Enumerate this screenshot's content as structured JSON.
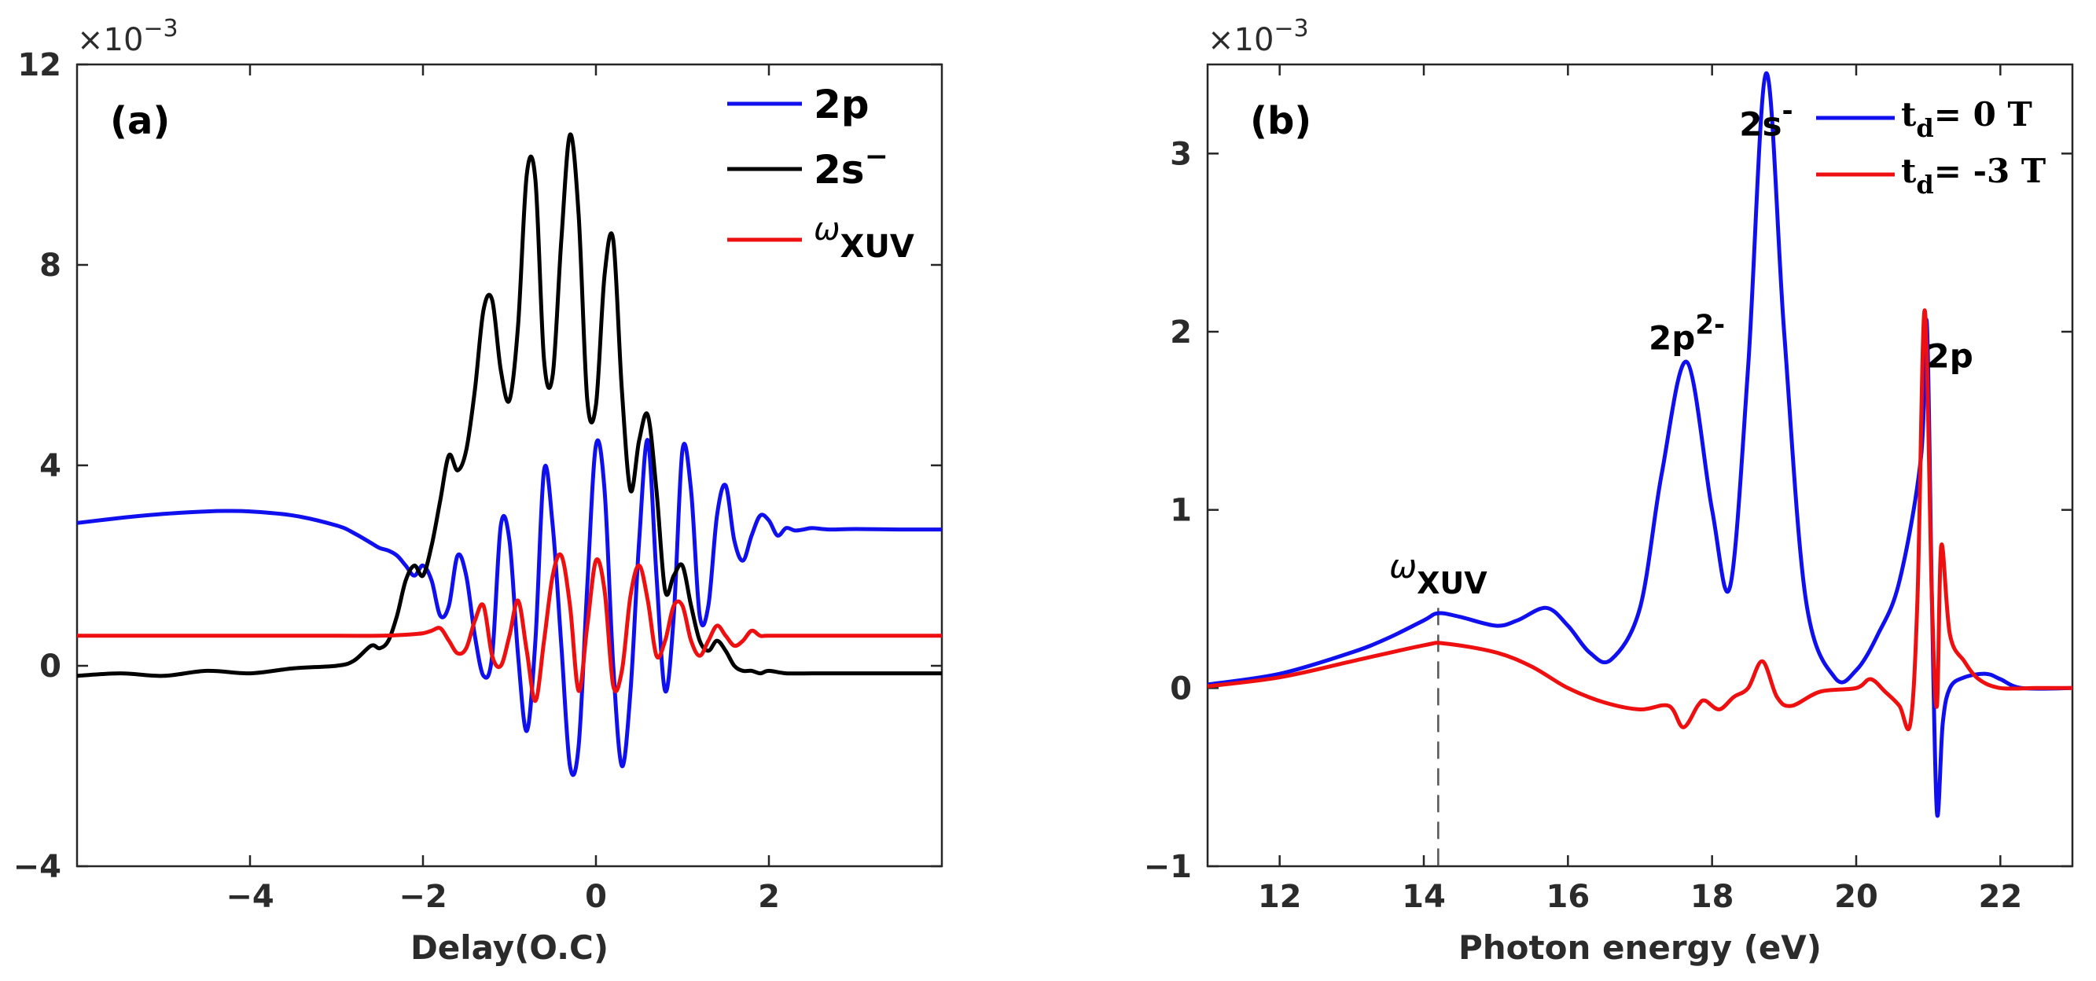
{
  "chart_data": [
    {
      "type": "line",
      "panel_label": "(a)",
      "xlabel": "Delay(O.C)",
      "ylabel": "",
      "exponent_label": "×10",
      "exponent_power": "−3",
      "xlim": [
        -6,
        4
      ],
      "ylim": [
        -4,
        12
      ],
      "xticks": [
        -4,
        -2,
        0,
        2
      ],
      "xtick_labels": [
        "−4",
        "−2",
        "0",
        "2"
      ],
      "yticks": [
        -4,
        0,
        4,
        8,
        12
      ],
      "ytick_labels": [
        "−4",
        "0",
        "4",
        "8",
        "12"
      ],
      "legend_position": "top-right",
      "series": [
        {
          "name": "2p",
          "legend_label": "2p",
          "color": "#1010ee",
          "x": [
            -6,
            -5.5,
            -5,
            -4.5,
            -4.3,
            -4,
            -3.5,
            -3,
            -2.8,
            -2.6,
            -2.5,
            -2.4,
            -2.3,
            -2.2,
            -2.1,
            -2,
            -1.9,
            -1.8,
            -1.7,
            -1.6,
            -1.5,
            -1.4,
            -1.3,
            -1.2,
            -1.1,
            -1.0,
            -0.9,
            -0.8,
            -0.7,
            -0.6,
            -0.5,
            -0.4,
            -0.3,
            -0.2,
            -0.1,
            0,
            0.1,
            0.2,
            0.3,
            0.4,
            0.5,
            0.6,
            0.7,
            0.8,
            0.9,
            1.0,
            1.1,
            1.2,
            1.3,
            1.4,
            1.5,
            1.6,
            1.7,
            1.8,
            1.9,
            2.0,
            2.1,
            2.2,
            2.3,
            2.4,
            2.5,
            2.7,
            3.0,
            3.5,
            4.0
          ],
          "y": [
            2.85,
            2.95,
            3.03,
            3.08,
            3.09,
            3.08,
            3.0,
            2.8,
            2.65,
            2.45,
            2.35,
            2.3,
            2.2,
            2.0,
            1.8,
            2.0,
            1.7,
            1.0,
            1.2,
            2.2,
            1.8,
            0.6,
            -0.2,
            0.2,
            2.8,
            2.5,
            0.2,
            -1.3,
            0.5,
            3.9,
            2.8,
            0.4,
            -2.0,
            -1.6,
            1.6,
            4.4,
            3.5,
            0.0,
            -2.0,
            -0.5,
            2.5,
            4.5,
            1.8,
            -0.5,
            1.0,
            4.3,
            3.5,
            1.0,
            1.2,
            3.0,
            3.6,
            2.5,
            2.1,
            2.6,
            3.0,
            2.9,
            2.6,
            2.75,
            2.7,
            2.72,
            2.75,
            2.72,
            2.73,
            2.72,
            2.72
          ]
        },
        {
          "name": "2s-",
          "legend_label": "2s",
          "legend_sup": "−",
          "color": "#000000",
          "x": [
            -6,
            -5.5,
            -5,
            -4.5,
            -4,
            -3.5,
            -3,
            -2.8,
            -2.6,
            -2.5,
            -2.4,
            -2.3,
            -2.2,
            -2.1,
            -2,
            -1.9,
            -1.8,
            -1.7,
            -1.6,
            -1.5,
            -1.4,
            -1.3,
            -1.2,
            -1.1,
            -1.0,
            -0.9,
            -0.8,
            -0.7,
            -0.6,
            -0.5,
            -0.4,
            -0.3,
            -0.2,
            -0.1,
            0,
            0.1,
            0.2,
            0.3,
            0.4,
            0.5,
            0.6,
            0.7,
            0.8,
            0.9,
            1.0,
            1.1,
            1.2,
            1.3,
            1.4,
            1.5,
            1.6,
            1.7,
            1.8,
            1.9,
            2.0,
            2.2,
            2.5,
            3.0,
            3.5,
            4.0
          ],
          "y": [
            -0.2,
            -0.15,
            -0.2,
            -0.1,
            -0.15,
            -0.05,
            0.0,
            0.1,
            0.4,
            0.35,
            0.5,
            1.0,
            1.7,
            2.0,
            1.8,
            2.4,
            3.3,
            4.2,
            3.9,
            4.3,
            5.5,
            7.1,
            7.3,
            5.9,
            5.3,
            6.8,
            9.8,
            9.7,
            6.1,
            5.8,
            8.5,
            10.6,
            9.0,
            5.3,
            5.2,
            7.8,
            8.5,
            5.5,
            3.5,
            4.5,
            5.0,
            3.5,
            1.5,
            1.8,
            2.0,
            1.2,
            0.5,
            0.3,
            0.5,
            0.3,
            0.0,
            -0.1,
            -0.1,
            -0.15,
            -0.1,
            -0.15,
            -0.15,
            -0.15,
            -0.15,
            -0.15
          ]
        },
        {
          "name": "ωXUV",
          "legend_label": "ω",
          "legend_sub": "XUV",
          "color": "#ee1010",
          "x": [
            -6,
            -5,
            -4,
            -3,
            -2.5,
            -2.2,
            -2.0,
            -1.9,
            -1.8,
            -1.7,
            -1.6,
            -1.5,
            -1.4,
            -1.3,
            -1.2,
            -1.1,
            -1.0,
            -0.9,
            -0.8,
            -0.7,
            -0.6,
            -0.5,
            -0.4,
            -0.3,
            -0.2,
            -0.1,
            0,
            0.1,
            0.2,
            0.3,
            0.4,
            0.5,
            0.6,
            0.7,
            0.8,
            0.9,
            1.0,
            1.1,
            1.2,
            1.3,
            1.4,
            1.5,
            1.6,
            1.7,
            1.8,
            1.9,
            2.0,
            2.5,
            3.0,
            3.5,
            4.0
          ],
          "y": [
            0.6,
            0.6,
            0.6,
            0.6,
            0.6,
            0.62,
            0.65,
            0.7,
            0.75,
            0.5,
            0.25,
            0.35,
            0.9,
            1.2,
            0.2,
            0.0,
            0.6,
            1.3,
            0.3,
            -0.7,
            0.5,
            1.8,
            2.2,
            1.2,
            -0.5,
            0.8,
            2.1,
            1.5,
            -0.4,
            -0.1,
            1.4,
            2.0,
            1.3,
            0.2,
            0.5,
            1.2,
            1.2,
            0.5,
            0.2,
            0.5,
            0.8,
            0.6,
            0.4,
            0.5,
            0.7,
            0.6,
            0.6,
            0.6,
            0.6,
            0.6,
            0.6
          ]
        }
      ]
    },
    {
      "type": "line",
      "panel_label": "(b)",
      "xlabel": "Photon energy (eV)",
      "ylabel": "",
      "exponent_label": "×10",
      "exponent_power": "−3",
      "xlim": [
        11,
        23
      ],
      "ylim": [
        -1,
        3.5
      ],
      "xticks": [
        12,
        14,
        16,
        18,
        20,
        22
      ],
      "xtick_labels": [
        "12",
        "14",
        "16",
        "18",
        "20",
        "22"
      ],
      "yticks": [
        -1,
        0,
        1,
        2,
        3
      ],
      "ytick_labels": [
        "−1",
        "0",
        "1",
        "2",
        "3"
      ],
      "legend_position": "top-right",
      "annotations": [
        {
          "text": "2s",
          "sup": "-",
          "x": 18.75,
          "y": 3.1
        },
        {
          "text": "2p",
          "sup": "2-",
          "x": 17.65,
          "y": 1.9
        },
        {
          "text": "2p",
          "x": 21.3,
          "y": 1.8
        },
        {
          "text": "ω",
          "sub": "XUV",
          "x": 14.2,
          "y": 0.62
        }
      ],
      "vline": {
        "x": 14.2,
        "style": "dashed"
      },
      "series": [
        {
          "name": "td = 0 T",
          "legend_label": "t",
          "legend_sub": "d",
          "legend_tail": "= 0 T",
          "color": "#1010ee",
          "x": [
            11,
            12,
            13,
            13.5,
            14,
            14.2,
            14.5,
            15,
            15.3,
            15.7,
            16,
            16.3,
            16.6,
            17,
            17.3,
            17.65,
            18,
            18.25,
            18.5,
            18.75,
            19,
            19.3,
            19.7,
            20,
            20.3,
            20.6,
            20.9,
            20.98,
            21.05,
            21.12,
            21.2,
            21.3,
            21.5,
            21.8,
            22,
            22.3,
            23
          ],
          "y": [
            0.02,
            0.08,
            0.2,
            0.28,
            0.38,
            0.42,
            0.4,
            0.35,
            0.38,
            0.45,
            0.35,
            0.2,
            0.16,
            0.45,
            1.2,
            1.83,
            1.0,
            0.57,
            1.8,
            3.45,
            2.0,
            0.5,
            0.06,
            0.1,
            0.3,
            0.6,
            1.3,
            2.05,
            0.5,
            -0.7,
            -0.2,
            0.0,
            0.06,
            0.08,
            0.05,
            0.0,
            0.0
          ]
        },
        {
          "name": "td = -3 T",
          "legend_label": "t",
          "legend_sub": "d",
          "legend_tail": "= -3 T",
          "color": "#ee1010",
          "x": [
            11,
            12,
            13,
            14,
            14.3,
            15,
            15.5,
            16,
            16.5,
            17,
            17.4,
            17.6,
            17.8,
            17.9,
            18.1,
            18.3,
            18.5,
            18.7,
            18.9,
            19.1,
            19.5,
            20,
            20.2,
            20.4,
            20.6,
            20.75,
            20.85,
            20.95,
            21.05,
            21.12,
            21.18,
            21.3,
            21.5,
            21.7,
            22,
            22.5,
            23
          ],
          "y": [
            0.01,
            0.06,
            0.15,
            0.24,
            0.25,
            0.2,
            0.12,
            0.0,
            -0.08,
            -0.12,
            -0.1,
            -0.22,
            -0.1,
            -0.07,
            -0.12,
            -0.05,
            0.0,
            0.15,
            -0.05,
            -0.1,
            -0.02,
            0.0,
            0.05,
            -0.02,
            -0.1,
            -0.2,
            0.5,
            2.12,
            0.5,
            -0.1,
            0.8,
            0.3,
            0.15,
            0.05,
            0.0,
            0.0,
            0.0
          ]
        }
      ]
    }
  ]
}
